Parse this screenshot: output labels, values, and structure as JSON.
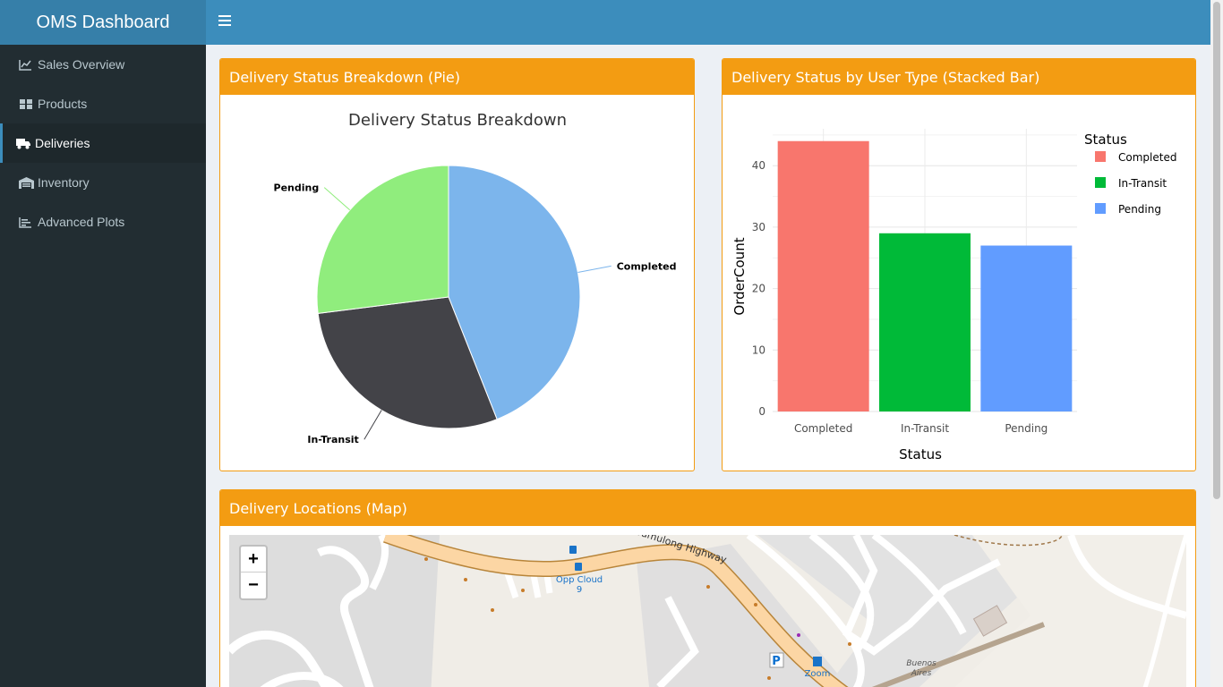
{
  "app": {
    "title": "OMS Dashboard"
  },
  "sidebar": {
    "items": [
      {
        "label": "Sales Overview",
        "icon": "line-chart-icon"
      },
      {
        "label": "Products",
        "icon": "cubes-icon"
      },
      {
        "label": "Deliveries",
        "icon": "truck-icon",
        "active": true
      },
      {
        "label": "Inventory",
        "icon": "warehouse-icon"
      },
      {
        "label": "Advanced Plots",
        "icon": "bar-chart-icon"
      }
    ]
  },
  "boxes": {
    "pie_title": "Delivery Status Breakdown (Pie)",
    "bar_title": "Delivery Status by User Type (Stacked Bar)",
    "map_title": "Delivery Locations (Map)"
  },
  "colors": {
    "accent": "#f39c12",
    "header": "#3c8dbc",
    "sidebar": "#222d32"
  },
  "chart_data": [
    {
      "type": "pie",
      "title": "Delivery Status Breakdown",
      "slices": [
        {
          "label": "Completed",
          "value": 44,
          "color": "#7cb5ec"
        },
        {
          "label": "In-Transit",
          "value": 29,
          "color": "#434348"
        },
        {
          "label": "Pending",
          "value": 27,
          "color": "#90ed7d"
        }
      ]
    },
    {
      "type": "bar",
      "categories": [
        "Completed",
        "In-Transit",
        "Pending"
      ],
      "values": [
        44,
        29,
        27
      ],
      "colors": [
        "#f8766d",
        "#00ba38",
        "#619cff"
      ],
      "xlabel": "Status",
      "ylabel": "OrderCount",
      "ylim": [
        0,
        46
      ],
      "yticks": [
        0,
        10,
        20,
        30,
        40
      ],
      "legend": {
        "title": "Status",
        "entries": [
          "Completed",
          "In-Transit",
          "Pending"
        ],
        "placement": "right"
      },
      "grid": true
    }
  ],
  "map": {
    "zoom_in": "+",
    "zoom_out": "−",
    "labels": {
      "road": "Sumulong Highway",
      "stop_line1": "Opp Cloud",
      "stop_line2": "9",
      "fuel": "Zoom",
      "place_line1": "Buenos",
      "place_line2": "Aires",
      "parking": "P"
    }
  }
}
